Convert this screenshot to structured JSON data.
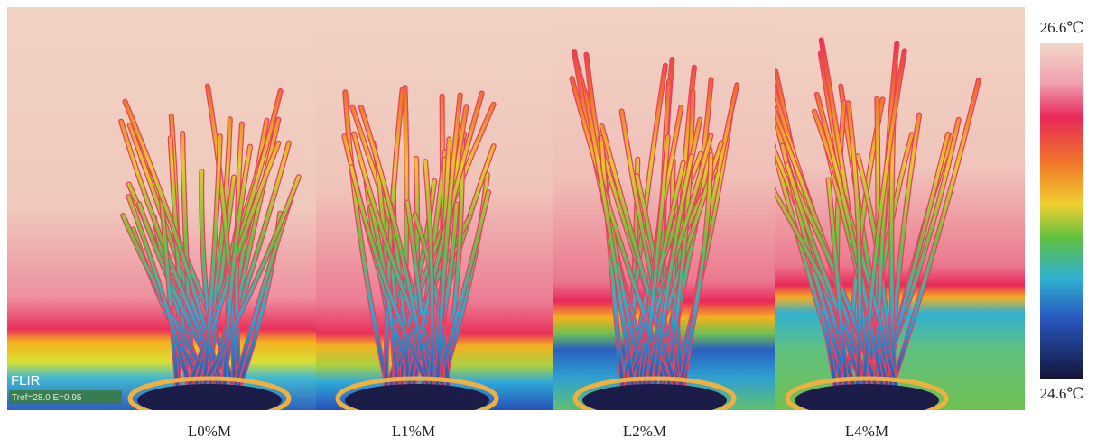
{
  "panels": [
    {
      "label": "L0%M"
    },
    {
      "label": "L1%M"
    },
    {
      "label": "L2%M"
    },
    {
      "label": "L4%M"
    }
  ],
  "colorbar": {
    "max": "26.6℃",
    "min": "24.6℃"
  },
  "logo": {
    "brand": "FLIR",
    "params": "Tref=28.0 E=0.95"
  }
}
